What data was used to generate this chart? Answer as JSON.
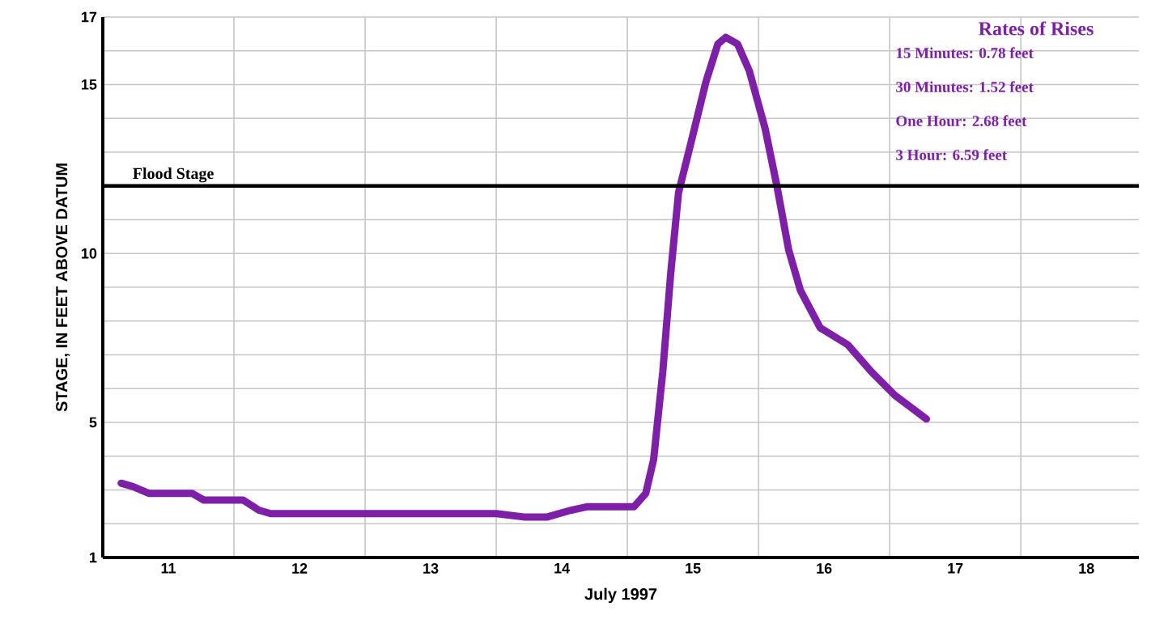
{
  "chart_data": {
    "type": "line",
    "xlabel": "July 1997",
    "ylabel": "STAGE, IN FEET ABOVE DATUM",
    "x": [
      11.14,
      11.23,
      11.35,
      11.68,
      11.77,
      12.07,
      12.19,
      12.28,
      14.0,
      14.21,
      14.39,
      14.57,
      14.69,
      15.05,
      15.14,
      15.2,
      15.27,
      15.33,
      15.39,
      15.48,
      15.6,
      15.69,
      15.75,
      15.84,
      15.93,
      16.05,
      16.14,
      16.23,
      16.32,
      16.47,
      16.68,
      16.86,
      17.04,
      17.28
    ],
    "series": [
      {
        "color": "#7e1fa8",
        "values": [
          3.2,
          3.1,
          2.9,
          2.9,
          2.7,
          2.7,
          2.4,
          2.3,
          2.3,
          2.2,
          2.2,
          2.4,
          2.5,
          2.5,
          2.9,
          3.9,
          6.5,
          9.4,
          11.8,
          13.2,
          15.1,
          16.2,
          16.4,
          16.2,
          15.4,
          13.7,
          12.0,
          10.1,
          8.9,
          7.8,
          7.3,
          6.5,
          5.8,
          5.1
        ]
      }
    ],
    "xlim": [
      11,
      18.9
    ],
    "xticks": [
      {
        "value": 11.5,
        "label": "11"
      },
      {
        "value": 12.5,
        "label": "12"
      },
      {
        "value": 13.5,
        "label": "13"
      },
      {
        "value": 14.5,
        "label": "14"
      },
      {
        "value": 15.5,
        "label": "15"
      },
      {
        "value": 16.5,
        "label": "16"
      },
      {
        "value": 17.5,
        "label": "17"
      },
      {
        "value": 18.5,
        "label": "18"
      },
      {
        "value": 12,
        "label": null
      },
      {
        "value": 13,
        "label": null
      },
      {
        "value": 14,
        "label": null
      },
      {
        "value": 15,
        "label": null
      },
      {
        "value": 16,
        "label": null
      },
      {
        "value": 17,
        "label": null
      },
      {
        "value": 18,
        "label": null
      }
    ],
    "ylim": [
      1,
      17
    ],
    "yticks": [
      1,
      {
        "value": 2,
        "label": null
      },
      {
        "value": 3,
        "label": null
      },
      {
        "value": 4,
        "label": null
      },
      5,
      {
        "value": 6,
        "label": null
      },
      {
        "value": 7,
        "label": null
      },
      {
        "value": 8,
        "label": null
      },
      {
        "value": 9,
        "label": null
      },
      10,
      {
        "value": 11,
        "label": null
      },
      {
        "value": 12,
        "label": null
      },
      {
        "value": 13,
        "label": null
      },
      {
        "value": 14,
        "label": null
      },
      15,
      {
        "value": 16,
        "label": null
      },
      17
    ],
    "grid": true,
    "line_style": "solid",
    "marker": "none",
    "ref_lines": [
      {
        "axis": "y",
        "value": 12,
        "label": "Flood Stage",
        "color": "#000000"
      }
    ],
    "annotations": [
      "Rates of Rises",
      "15 Minutes: 0.78 feet",
      "30 Minutes: 1.52 feet",
      "One Hour:   2.68 feet",
      "3 Hour:        6.59 feet"
    ]
  }
}
